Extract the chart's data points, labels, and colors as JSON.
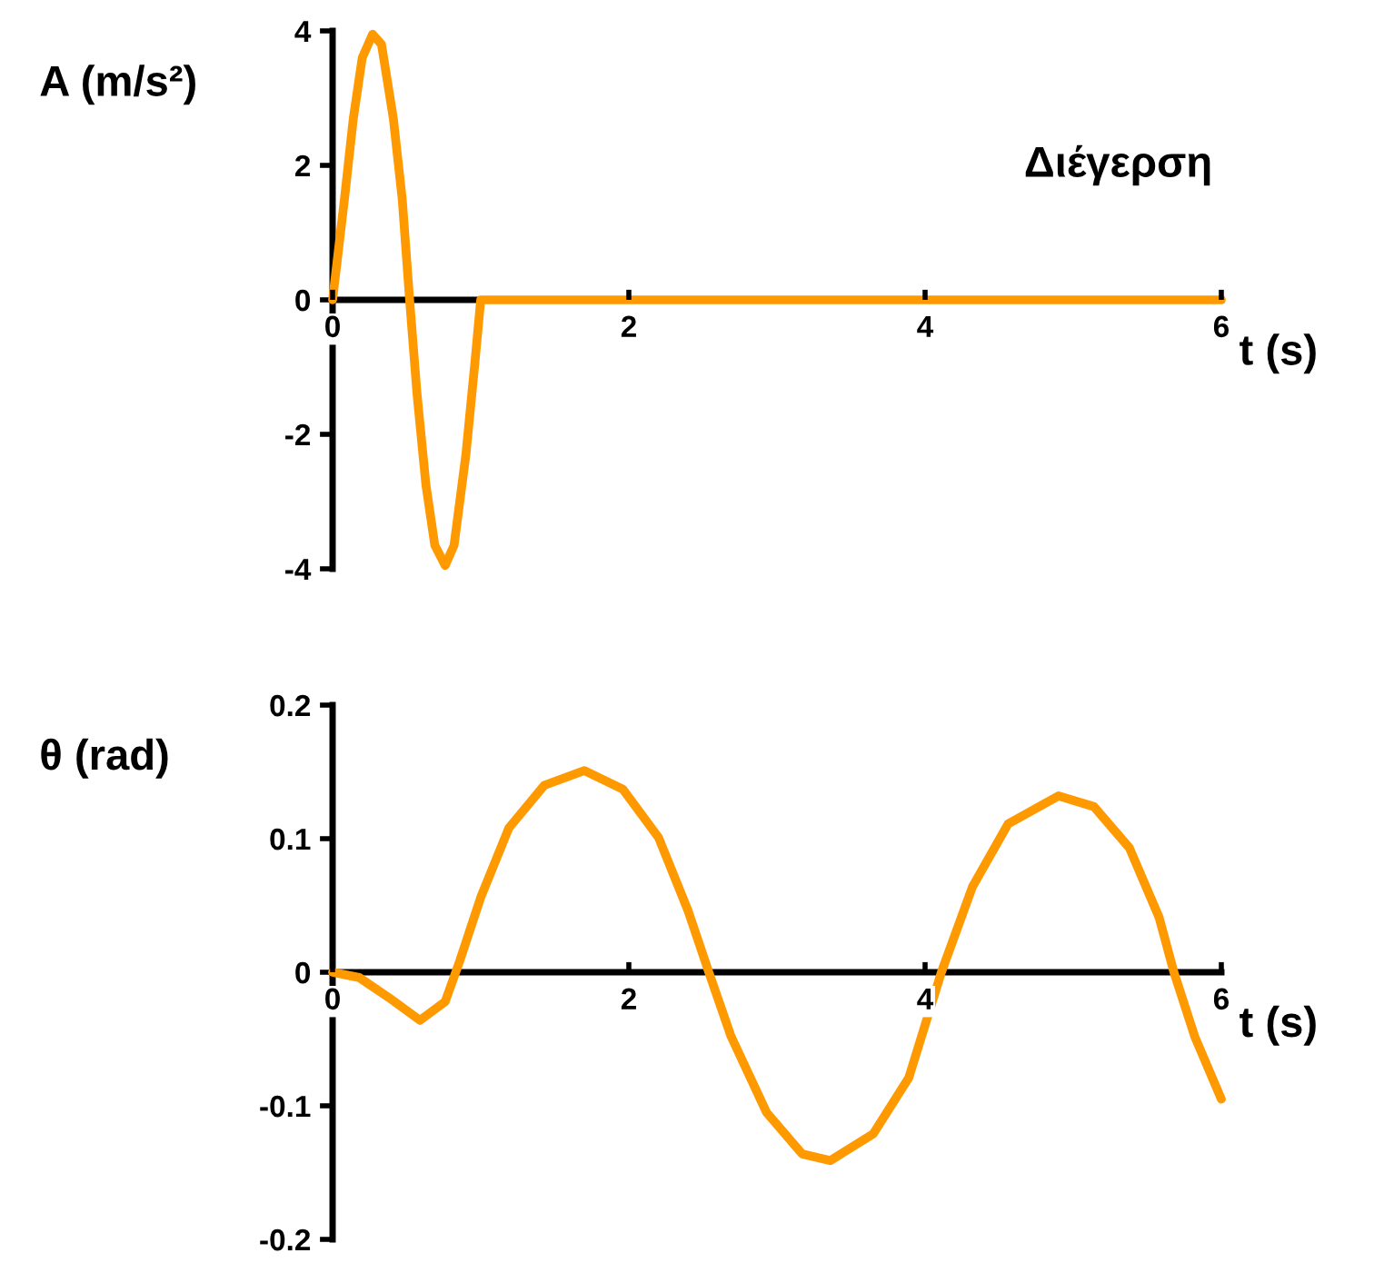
{
  "chart_data": [
    {
      "type": "line",
      "xlabel": "t (s)",
      "ylabel": "A (m/s²)",
      "annotations": [
        "Διέγερση"
      ],
      "xlim": [
        0,
        6
      ],
      "xticks": [
        0,
        2,
        4,
        6
      ],
      "ylim": [
        -4,
        4
      ],
      "yticks": [
        -4,
        -2,
        0,
        2,
        4
      ],
      "x": [
        0,
        0.08,
        0.14,
        0.2,
        0.27,
        0.33,
        0.41,
        0.47,
        0.52,
        0.57,
        0.63,
        0.69,
        0.76,
        0.82,
        0.9,
        0.96,
        1.0,
        6
      ],
      "series": [
        {
          "color": "#ff9900",
          "values": [
            0,
            1.5,
            2.7,
            3.6,
            3.95,
            3.8,
            2.7,
            1.5,
            0,
            -1.4,
            -2.75,
            -3.65,
            -3.95,
            -3.65,
            -2.3,
            -0.95,
            0,
            0
          ]
        }
      ]
    },
    {
      "type": "line",
      "xlabel": "t (s)",
      "ylabel": "θ (rad)",
      "xlim": [
        0,
        6
      ],
      "xticks": [
        0,
        2,
        4,
        6
      ],
      "ylim": [
        -0.2,
        0.2
      ],
      "yticks": [
        -0.2,
        -0.1,
        0,
        0.1,
        0.2
      ],
      "x": [
        0,
        0.18,
        0.38,
        0.59,
        0.76,
        0.86,
        1.0,
        1.19,
        1.43,
        1.7,
        1.96,
        2.2,
        2.4,
        2.54,
        2.69,
        2.93,
        3.17,
        3.36,
        3.65,
        3.89,
        4.11,
        4.32,
        4.56,
        4.9,
        5.14,
        5.38,
        5.58,
        5.68,
        5.82,
        6.0
      ],
      "series": [
        {
          "color": "#ff9900",
          "values": [
            0,
            -0.004,
            -0.019,
            -0.036,
            -0.022,
            0.009,
            0.056,
            0.108,
            0.14,
            0.151,
            0.137,
            0.101,
            0.046,
            0,
            -0.048,
            -0.105,
            -0.136,
            -0.141,
            -0.121,
            -0.079,
            0,
            0.064,
            0.111,
            0.132,
            0.124,
            0.093,
            0.041,
            0,
            -0.048,
            -0.095
          ]
        }
      ]
    }
  ]
}
